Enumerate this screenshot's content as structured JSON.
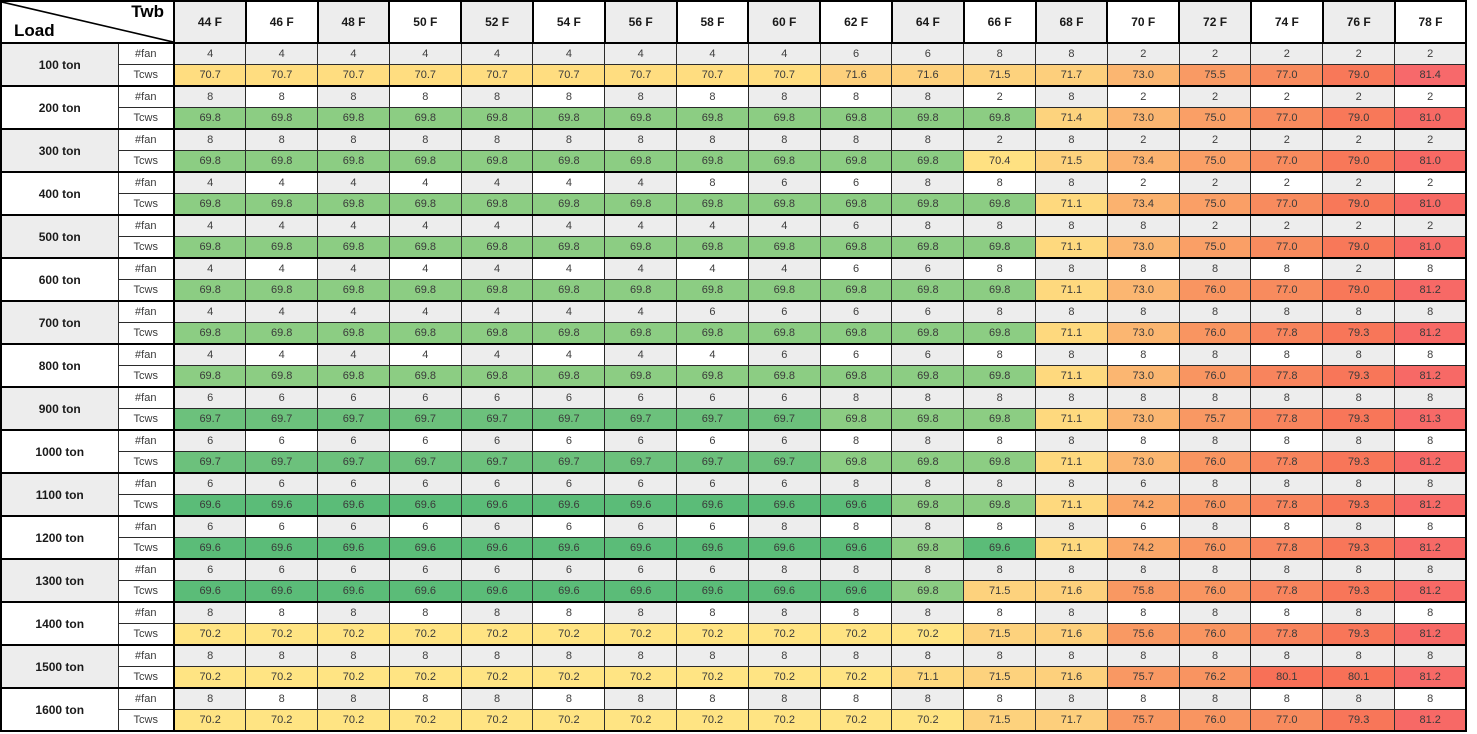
{
  "table": {
    "corner": {
      "top_label": "Twb",
      "bottom_label": "Load"
    },
    "metric_labels": [
      "#fan",
      "Tcws"
    ]
  },
  "chart_data": {
    "type": "heatmap",
    "x_axis_label": "Twb",
    "y_axis_label": "Load",
    "columns": [
      "44 F",
      "46 F",
      "48 F",
      "50 F",
      "52 F",
      "54 F",
      "56 F",
      "58 F",
      "60 F",
      "62 F",
      "64 F",
      "66 F",
      "68 F",
      "70 F",
      "72 F",
      "74 F",
      "76 F",
      "78 F"
    ],
    "row_metrics": [
      "#fan",
      "Tcws"
    ],
    "rows": [
      {
        "load": "100 ton",
        "fan": [
          4,
          4,
          4,
          4,
          4,
          4,
          4,
          4,
          4,
          6,
          6,
          8,
          8,
          2,
          2,
          2,
          2,
          2
        ],
        "tcws": [
          70.7,
          70.7,
          70.7,
          70.7,
          70.7,
          70.7,
          70.7,
          70.7,
          70.7,
          71.6,
          71.6,
          71.5,
          71.7,
          73.0,
          75.5,
          77.0,
          79.0,
          81.4
        ]
      },
      {
        "load": "200 ton",
        "fan": [
          8,
          8,
          8,
          8,
          8,
          8,
          8,
          8,
          8,
          8,
          8,
          2,
          8,
          2,
          2,
          2,
          2,
          2
        ],
        "tcws": [
          69.8,
          69.8,
          69.8,
          69.8,
          69.8,
          69.8,
          69.8,
          69.8,
          69.8,
          69.8,
          69.8,
          69.8,
          71.4,
          73.0,
          75.0,
          77.0,
          79.0,
          81.0
        ]
      },
      {
        "load": "300 ton",
        "fan": [
          8,
          8,
          8,
          8,
          8,
          8,
          8,
          8,
          8,
          8,
          8,
          2,
          8,
          2,
          2,
          2,
          2,
          2
        ],
        "tcws": [
          69.8,
          69.8,
          69.8,
          69.8,
          69.8,
          69.8,
          69.8,
          69.8,
          69.8,
          69.8,
          69.8,
          70.4,
          71.5,
          73.4,
          75.0,
          77.0,
          79.0,
          81.0
        ]
      },
      {
        "load": "400 ton",
        "fan": [
          4,
          4,
          4,
          4,
          4,
          4,
          4,
          8,
          6,
          6,
          8,
          8,
          8,
          2,
          2,
          2,
          2,
          2
        ],
        "tcws": [
          69.8,
          69.8,
          69.8,
          69.8,
          69.8,
          69.8,
          69.8,
          69.8,
          69.8,
          69.8,
          69.8,
          69.8,
          71.1,
          73.4,
          75.0,
          77.0,
          79.0,
          81.0
        ]
      },
      {
        "load": "500 ton",
        "fan": [
          4,
          4,
          4,
          4,
          4,
          4,
          4,
          4,
          4,
          6,
          8,
          8,
          8,
          8,
          2,
          2,
          2,
          2
        ],
        "tcws": [
          69.8,
          69.8,
          69.8,
          69.8,
          69.8,
          69.8,
          69.8,
          69.8,
          69.8,
          69.8,
          69.8,
          69.8,
          71.1,
          73.0,
          75.0,
          77.0,
          79.0,
          81.0
        ]
      },
      {
        "load": "600 ton",
        "fan": [
          4,
          4,
          4,
          4,
          4,
          4,
          4,
          4,
          4,
          6,
          6,
          8,
          8,
          8,
          8,
          8,
          2,
          8
        ],
        "tcws": [
          69.8,
          69.8,
          69.8,
          69.8,
          69.8,
          69.8,
          69.8,
          69.8,
          69.8,
          69.8,
          69.8,
          69.8,
          71.1,
          73.0,
          76.0,
          77.0,
          79.0,
          81.2
        ]
      },
      {
        "load": "700 ton",
        "fan": [
          4,
          4,
          4,
          4,
          4,
          4,
          4,
          6,
          6,
          6,
          6,
          8,
          8,
          8,
          8,
          8,
          8,
          8
        ],
        "tcws": [
          69.8,
          69.8,
          69.8,
          69.8,
          69.8,
          69.8,
          69.8,
          69.8,
          69.8,
          69.8,
          69.8,
          69.8,
          71.1,
          73.0,
          76.0,
          77.8,
          79.3,
          81.2
        ]
      },
      {
        "load": "800 ton",
        "fan": [
          4,
          4,
          4,
          4,
          4,
          4,
          4,
          4,
          6,
          6,
          6,
          8,
          8,
          8,
          8,
          8,
          8,
          8
        ],
        "tcws": [
          69.8,
          69.8,
          69.8,
          69.8,
          69.8,
          69.8,
          69.8,
          69.8,
          69.8,
          69.8,
          69.8,
          69.8,
          71.1,
          73.0,
          76.0,
          77.8,
          79.3,
          81.2
        ]
      },
      {
        "load": "900 ton",
        "fan": [
          6,
          6,
          6,
          6,
          6,
          6,
          6,
          6,
          6,
          8,
          8,
          8,
          8,
          8,
          8,
          8,
          8,
          8
        ],
        "tcws": [
          69.7,
          69.7,
          69.7,
          69.7,
          69.7,
          69.7,
          69.7,
          69.7,
          69.7,
          69.8,
          69.8,
          69.8,
          71.1,
          73.0,
          75.7,
          77.8,
          79.3,
          81.3
        ]
      },
      {
        "load": "1000 ton",
        "fan": [
          6,
          6,
          6,
          6,
          6,
          6,
          6,
          6,
          6,
          8,
          8,
          8,
          8,
          8,
          8,
          8,
          8,
          8
        ],
        "tcws": [
          69.7,
          69.7,
          69.7,
          69.7,
          69.7,
          69.7,
          69.7,
          69.7,
          69.7,
          69.8,
          69.8,
          69.8,
          71.1,
          73.0,
          76.0,
          77.8,
          79.3,
          81.2
        ]
      },
      {
        "load": "1100 ton",
        "fan": [
          6,
          6,
          6,
          6,
          6,
          6,
          6,
          6,
          6,
          8,
          8,
          8,
          8,
          6,
          8,
          8,
          8,
          8
        ],
        "tcws": [
          69.6,
          69.6,
          69.6,
          69.6,
          69.6,
          69.6,
          69.6,
          69.6,
          69.6,
          69.6,
          69.8,
          69.8,
          71.1,
          74.2,
          76.0,
          77.8,
          79.3,
          81.2
        ]
      },
      {
        "load": "1200 ton",
        "fan": [
          6,
          6,
          6,
          6,
          6,
          6,
          6,
          6,
          8,
          8,
          8,
          8,
          8,
          6,
          8,
          8,
          8,
          8
        ],
        "tcws": [
          69.6,
          69.6,
          69.6,
          69.6,
          69.6,
          69.6,
          69.6,
          69.6,
          69.6,
          69.6,
          69.8,
          69.6,
          71.1,
          74.2,
          76.0,
          77.8,
          79.3,
          81.2
        ]
      },
      {
        "load": "1300 ton",
        "fan": [
          6,
          6,
          6,
          6,
          6,
          6,
          6,
          6,
          8,
          8,
          8,
          8,
          8,
          8,
          8,
          8,
          8,
          8
        ],
        "tcws": [
          69.6,
          69.6,
          69.6,
          69.6,
          69.6,
          69.6,
          69.6,
          69.6,
          69.6,
          69.6,
          69.8,
          71.5,
          71.6,
          75.8,
          76.0,
          77.8,
          79.3,
          81.2
        ]
      },
      {
        "load": "1400 ton",
        "fan": [
          8,
          8,
          8,
          8,
          8,
          8,
          8,
          8,
          8,
          8,
          8,
          8,
          8,
          8,
          8,
          8,
          8,
          8
        ],
        "tcws": [
          70.2,
          70.2,
          70.2,
          70.2,
          70.2,
          70.2,
          70.2,
          70.2,
          70.2,
          70.2,
          70.2,
          71.5,
          71.6,
          75.6,
          76.0,
          77.8,
          79.3,
          81.2
        ]
      },
      {
        "load": "1500 ton",
        "fan": [
          8,
          8,
          8,
          8,
          8,
          8,
          8,
          8,
          8,
          8,
          8,
          8,
          8,
          8,
          8,
          8,
          8,
          8
        ],
        "tcws": [
          70.2,
          70.2,
          70.2,
          70.2,
          70.2,
          70.2,
          70.2,
          70.2,
          70.2,
          70.2,
          71.1,
          71.5,
          71.6,
          75.7,
          76.2,
          80.1,
          80.1,
          81.2
        ]
      },
      {
        "load": "1600 ton",
        "fan": [
          8,
          8,
          8,
          8,
          8,
          8,
          8,
          8,
          8,
          8,
          8,
          8,
          8,
          8,
          8,
          8,
          8,
          8
        ],
        "tcws": [
          70.2,
          70.2,
          70.2,
          70.2,
          70.2,
          70.2,
          70.2,
          70.2,
          70.2,
          70.2,
          70.2,
          71.5,
          71.7,
          75.7,
          76.0,
          77.0,
          79.3,
          81.2
        ]
      }
    ],
    "color_scale": {
      "low": "#63BE7B",
      "mid": "#FFEB84",
      "high": "#F8696B",
      "min_value": 69.6,
      "max_value": 81.4
    }
  },
  "colors": {
    "band_gray": "#ededed",
    "value_colors": {
      "69.6": "#5BBC78",
      "69.7": "#6CC17C",
      "69.8": "#8CCD83",
      "70.2": "#FFE483",
      "70.4": "#FFE182",
      "70.7": "#FFDD80",
      "71.1": "#FED97E",
      "71.4": "#FDD37D",
      "71.5": "#FDD27D",
      "71.6": "#FDD07C",
      "71.7": "#FDCF7C",
      "73.0": "#FBB671",
      "73.4": "#FBB26F",
      "74.2": "#FAA768",
      "75.0": "#FA9F66",
      "75.5": "#F99A64",
      "75.6": "#F99963",
      "75.7": "#F99863",
      "75.8": "#F99862",
      "76.0": "#F99561",
      "76.2": "#F99461",
      "77.0": "#F88B5E",
      "77.8": "#F8845D",
      "79.0": "#F87859",
      "79.3": "#F87659",
      "80.1": "#F87057",
      "81.0": "#F76964",
      "81.2": "#F76966",
      "81.3": "#F76967",
      "81.4": "#F7696B"
    }
  }
}
